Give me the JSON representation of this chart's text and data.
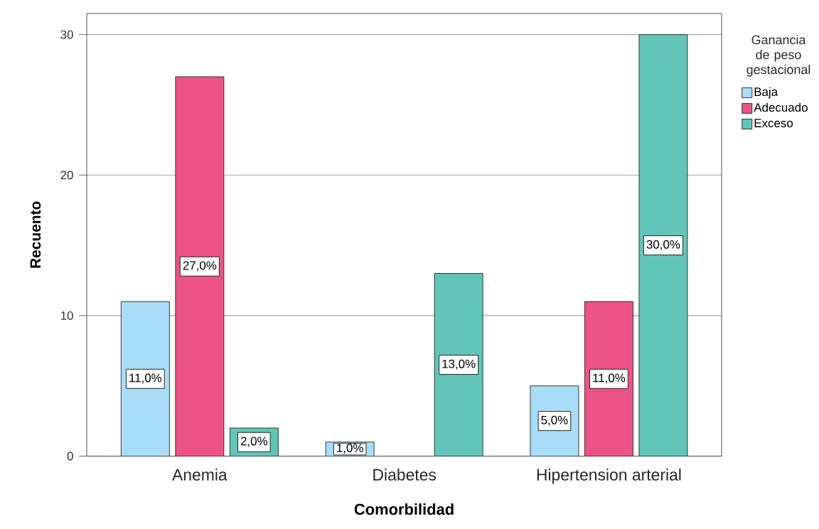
{
  "chart_data": {
    "type": "bar",
    "xlabel": "Comorbilidad",
    "ylabel": "Recuento",
    "legend_title": "Ganancia de peso gestacional",
    "categories": [
      "Anemia",
      "Diabetes",
      "Hipertension arterial"
    ],
    "series": [
      {
        "name": "Baja",
        "color": "#a8ddf7",
        "values": [
          11,
          1,
          5
        ],
        "value_labels": [
          "11,0%",
          "1,0%",
          "5,0%"
        ]
      },
      {
        "name": "Adecuado",
        "color": "#ec5285",
        "values": [
          27,
          null,
          11
        ],
        "value_labels": [
          "27,0%",
          null,
          "11,0%"
        ]
      },
      {
        "name": "Exceso",
        "color": "#61c5ba",
        "values": [
          2,
          13,
          30
        ],
        "value_labels": [
          "2,0%",
          "13,0%",
          "30,0%"
        ]
      }
    ],
    "ylim": [
      0,
      31.5
    ],
    "yticks": [
      0,
      10,
      20,
      30
    ],
    "grid": "y",
    "legend": "top right"
  }
}
